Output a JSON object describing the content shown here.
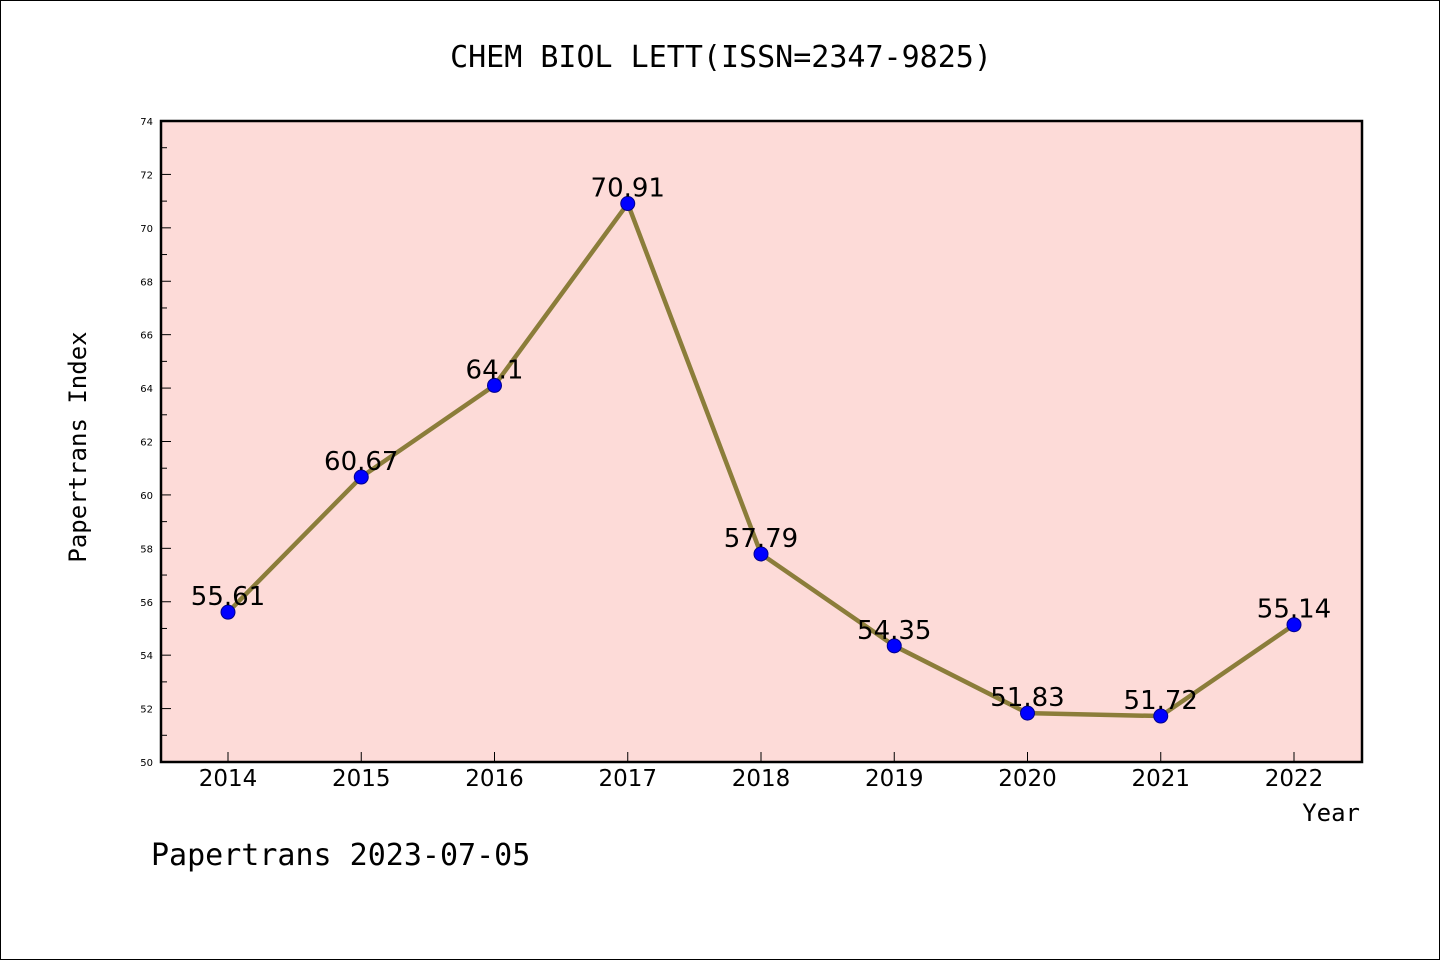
{
  "footer_text": "Papertrans 2023-07-05",
  "colors": {
    "plot_background": "#fddbd8",
    "line": "#8b7d3a",
    "marker": "#0000ff",
    "marker_edge": "#00008b"
  },
  "chart_data": {
    "type": "line",
    "title": "CHEM BIOL LETT(ISSN=2347-9825)",
    "xlabel": "Year",
    "ylabel": "Papertrans Index",
    "categories": [
      "2014",
      "2015",
      "2016",
      "2017",
      "2018",
      "2019",
      "2020",
      "2021",
      "2022"
    ],
    "series": [
      {
        "values": [
          55.61,
          60.67,
          64.1,
          70.91,
          57.79,
          54.35,
          51.83,
          51.72,
          55.14
        ],
        "data_labels": [
          "55.61",
          "60.67",
          "64.1",
          "70.91",
          "57.79",
          "54.35",
          "51.83",
          "51.72",
          "55.14"
        ]
      }
    ],
    "ylim": [
      50,
      74
    ],
    "y_ticks": [
      "50",
      "52",
      "54",
      "56",
      "58",
      "60",
      "62",
      "64",
      "66",
      "68",
      "70",
      "72",
      "74"
    ],
    "grid": false,
    "legend": "none"
  }
}
